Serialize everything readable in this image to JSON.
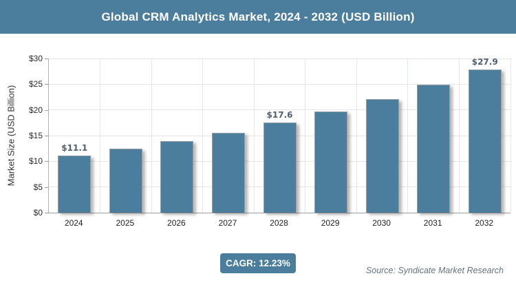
{
  "header": {
    "title": "Global CRM Analytics Market, 2024 - 2032 (USD Billion)"
  },
  "colors": {
    "accent": "#4A7E9C",
    "bar": "#4A7E9C",
    "value_label": "#51606F",
    "gridline": "#E3E5E7",
    "source_text": "#64737E"
  },
  "chart_data": {
    "type": "bar",
    "title": "Global CRM Analytics Market, 2024 - 2032 (USD Billion)",
    "categories": [
      "2024",
      "2025",
      "2026",
      "2027",
      "2028",
      "2029",
      "2030",
      "2031",
      "2032"
    ],
    "values": [
      11.1,
      12.5,
      13.9,
      15.6,
      17.6,
      19.7,
      22.1,
      24.9,
      27.9
    ],
    "bar_labels": [
      "$11.1",
      "",
      "",
      "",
      "$17.6",
      "",
      "",
      "",
      "$27.9"
    ],
    "xlabel": "",
    "ylabel": "Market Size (USD Billion)",
    "ylim": [
      0,
      30
    ],
    "ytick_step": 5,
    "ytick_labels": [
      "$0",
      "$5",
      "$10",
      "$15",
      "$20",
      "$25",
      "$30"
    ],
    "grid": true,
    "legend": "none"
  },
  "footer": {
    "cagr_label": "CAGR: 12.23%",
    "source": "Source: Syndicate Market Research"
  }
}
